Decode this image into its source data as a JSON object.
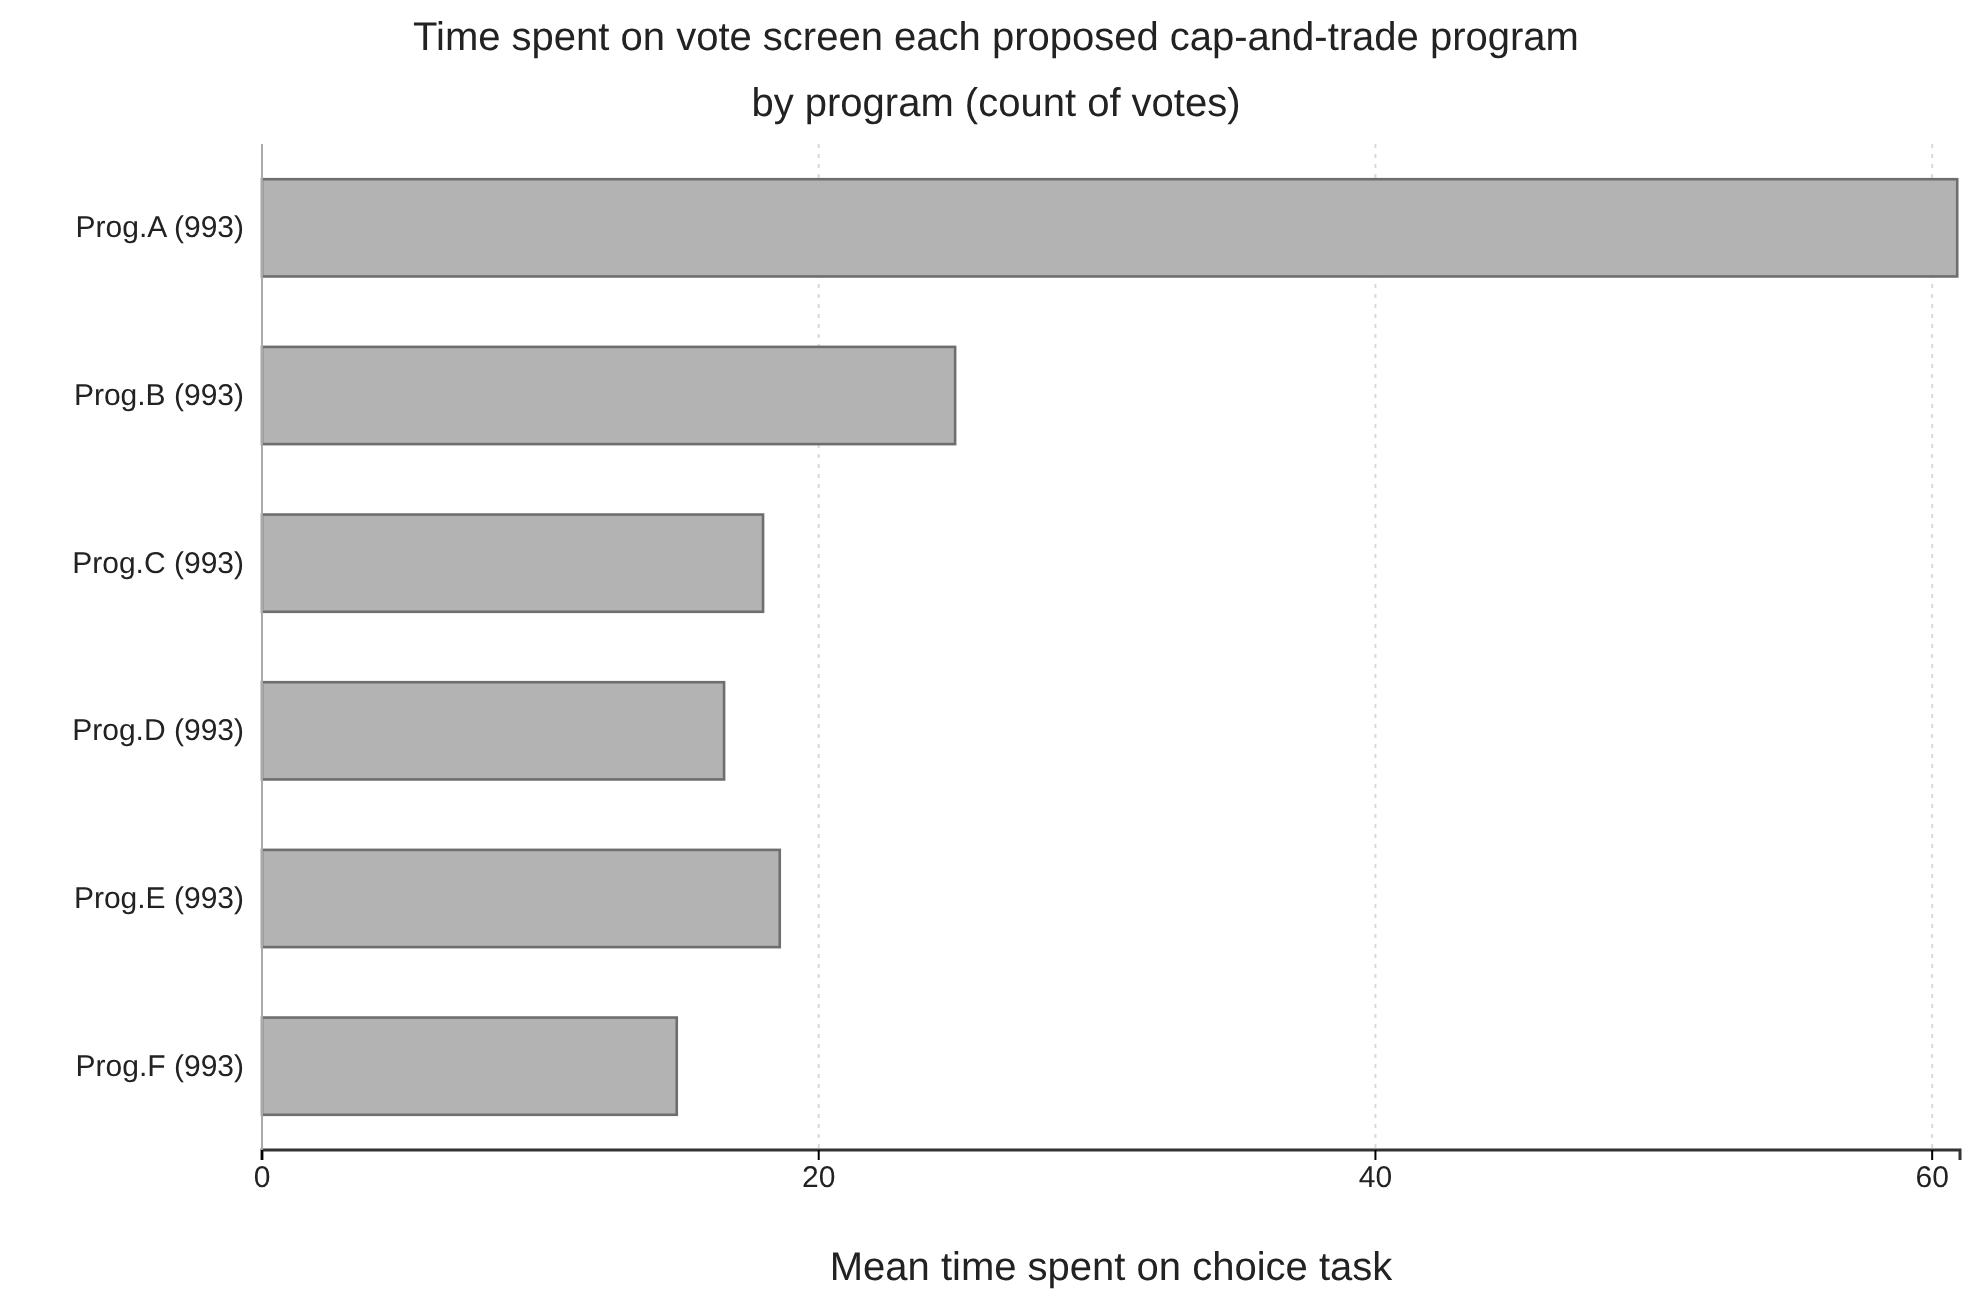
{
  "chart_data": {
    "type": "bar",
    "orientation": "horizontal",
    "title": "Time spent on vote screen each proposed cap-and-trade program",
    "subtitle": "by program (count of votes)",
    "xlabel": "Mean time spent on choice task",
    "categories": [
      "Prog.A (993)",
      "Prog.B (993)",
      "Prog.C (993)",
      "Prog.D (993)",
      "Prog.E (993)",
      "Prog.F (993)"
    ],
    "values": [
      60.9,
      24.9,
      18.0,
      16.6,
      18.6,
      14.9
    ],
    "color": "#b3b3b3",
    "xlim": [
      0,
      61
    ],
    "xticks": [
      0,
      20,
      40,
      60
    ],
    "grid": "x"
  }
}
